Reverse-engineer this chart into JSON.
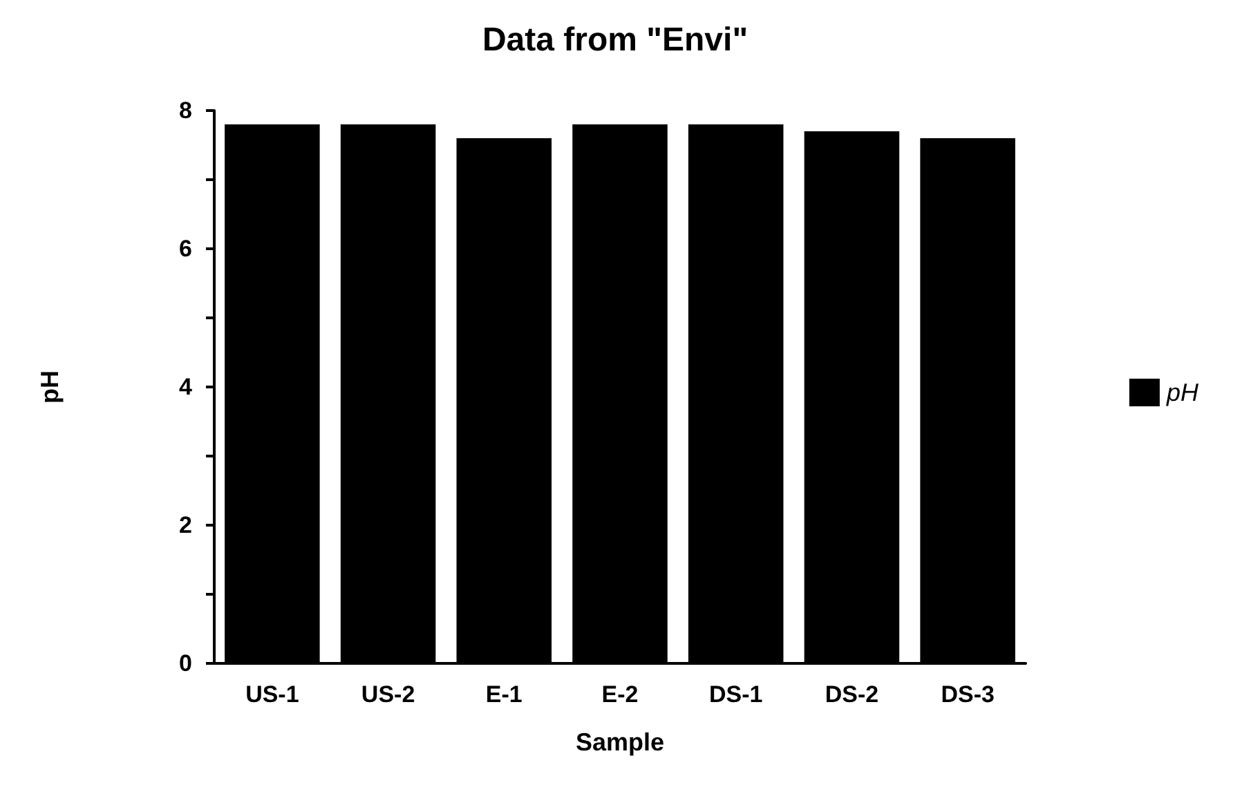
{
  "chart_data": {
    "type": "bar",
    "title": "Data from \"Envi\"",
    "xlabel": "Sample",
    "ylabel": "pH",
    "categories": [
      "US-1",
      "US-2",
      "E-1",
      "E-2",
      "DS-1",
      "DS-2",
      "DS-3"
    ],
    "series": [
      {
        "name": "pH",
        "color": "#000000",
        "values": [
          7.8,
          7.8,
          7.6,
          7.8,
          7.8,
          7.7,
          7.6
        ]
      }
    ],
    "ylim": [
      0,
      8
    ],
    "yticks": [
      0,
      {
        "value": 1,
        "label": null
      },
      2,
      {
        "value": 3,
        "label": null
      },
      4,
      {
        "value": 5,
        "label": null
      },
      6,
      {
        "value": 7,
        "label": null
      },
      8
    ],
    "grid": false,
    "legend": "right"
  }
}
